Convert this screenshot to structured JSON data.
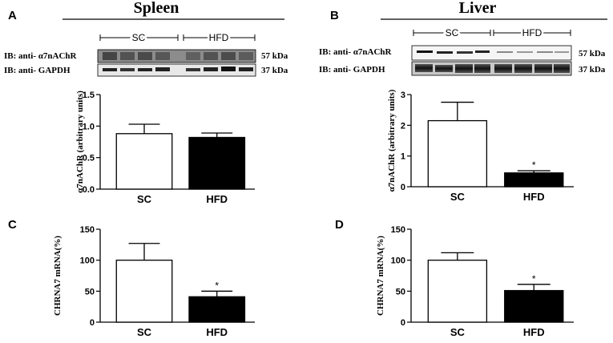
{
  "panels": {
    "A": {
      "letter": "A",
      "title": "Spleen"
    },
    "B": {
      "letter": "B",
      "title": "Liver"
    },
    "C": {
      "letter": "C"
    },
    "D": {
      "letter": "D"
    }
  },
  "blots": {
    "spleen": {
      "group1": "SC",
      "group2": "HFD",
      "row1_label": "IB: anti- α7nAChR",
      "row1_size": "57 kDa",
      "row2_label": "IB: anti- GAPDH",
      "row2_size": "37 kDa"
    },
    "liver": {
      "group1": "SC",
      "group2": "HFD",
      "row1_label": "IB: anti- α7nAChR",
      "row1_size": "57 kDa",
      "row2_label": "IB: anti- GAPDH",
      "row2_size": "37 kDa"
    }
  },
  "chart_data": [
    {
      "id": "A",
      "type": "bar",
      "categories": [
        "SC",
        "HFD"
      ],
      "values": [
        0.88,
        0.82
      ],
      "errors": [
        0.15,
        0.07
      ],
      "fills": [
        "#ffffff",
        "#000000"
      ],
      "significance": [
        "",
        ""
      ],
      "ylabel": "α7nAChR (arbitrary units)",
      "ylim": [
        0,
        1.5
      ],
      "yticks": [
        0.0,
        0.5,
        1.0,
        1.5
      ],
      "yticklabels": [
        "0.0",
        "0.5",
        "1.0",
        "1.5"
      ]
    },
    {
      "id": "B",
      "type": "bar",
      "categories": [
        "SC",
        "HFD"
      ],
      "values": [
        2.15,
        0.45
      ],
      "errors": [
        0.6,
        0.07
      ],
      "fills": [
        "#ffffff",
        "#000000"
      ],
      "significance": [
        "",
        "*"
      ],
      "ylabel": "α7nAChR (arbitrary units)",
      "ylim": [
        0,
        3
      ],
      "yticks": [
        0,
        1,
        2,
        3
      ],
      "yticklabels": [
        "0",
        "1",
        "2",
        "3"
      ]
    },
    {
      "id": "C",
      "type": "bar",
      "categories": [
        "SC",
        "HFD"
      ],
      "values": [
        100,
        41
      ],
      "errors": [
        27,
        9
      ],
      "fills": [
        "#ffffff",
        "#000000"
      ],
      "significance": [
        "",
        "*"
      ],
      "ylabel": "CHRNA7 mRNA(%)",
      "ylim": [
        0,
        150
      ],
      "yticks": [
        0,
        50,
        100,
        150
      ],
      "yticklabels": [
        "0",
        "50",
        "100",
        "150"
      ]
    },
    {
      "id": "D",
      "type": "bar",
      "categories": [
        "SC",
        "HFD"
      ],
      "values": [
        100,
        51
      ],
      "errors": [
        12,
        10
      ],
      "fills": [
        "#ffffff",
        "#000000"
      ],
      "significance": [
        "",
        "*"
      ],
      "ylabel": "CHRNA7 mRNA(%)",
      "ylim": [
        0,
        150
      ],
      "yticks": [
        0,
        50,
        100,
        150
      ],
      "yticklabels": [
        "0",
        "50",
        "100",
        "150"
      ]
    }
  ]
}
